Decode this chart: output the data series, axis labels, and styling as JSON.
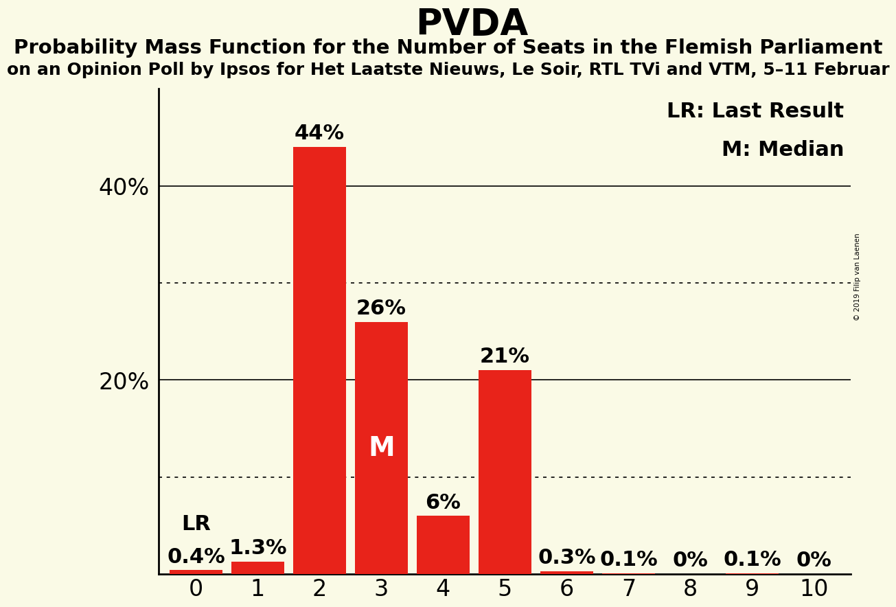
{
  "title": "PVDA",
  "subtitle1": "Probability Mass Function for the Number of Seats in the Flemish Parliament",
  "subtitle2": "on an Opinion Poll by Ipsos for Het Laatste Nieuws, Le Soir, RTL TVi and VTM, 5–11 Februar",
  "watermark": "© 2019 Filip van Laenen",
  "categories": [
    0,
    1,
    2,
    3,
    4,
    5,
    6,
    7,
    8,
    9,
    10
  ],
  "values": [
    0.4,
    1.3,
    44,
    26,
    6,
    21,
    0.3,
    0.1,
    0,
    0.1,
    0
  ],
  "bar_color": "#e8231a",
  "background_color": "#fafae6",
  "ylabel_ticks": [
    20,
    40
  ],
  "solid_lines": [
    20,
    40
  ],
  "dotted_lines": [
    10,
    30
  ],
  "lr_bar_idx": 0,
  "median_bar_idx": 3,
  "ylim": [
    0,
    50
  ],
  "legend_text1": "LR: Last Result",
  "legend_text2": "M: Median",
  "title_fontsize": 38,
  "subtitle1_fontsize": 21,
  "subtitle2_fontsize": 18,
  "tick_fontsize": 24,
  "annotation_fontsize": 22,
  "legend_fontsize": 22,
  "bar_labels": [
    "0.4%",
    "1.3%",
    "44%",
    "26%",
    "6%",
    "21%",
    "0.3%",
    "0.1%",
    "0%",
    "0.1%",
    "0%"
  ]
}
